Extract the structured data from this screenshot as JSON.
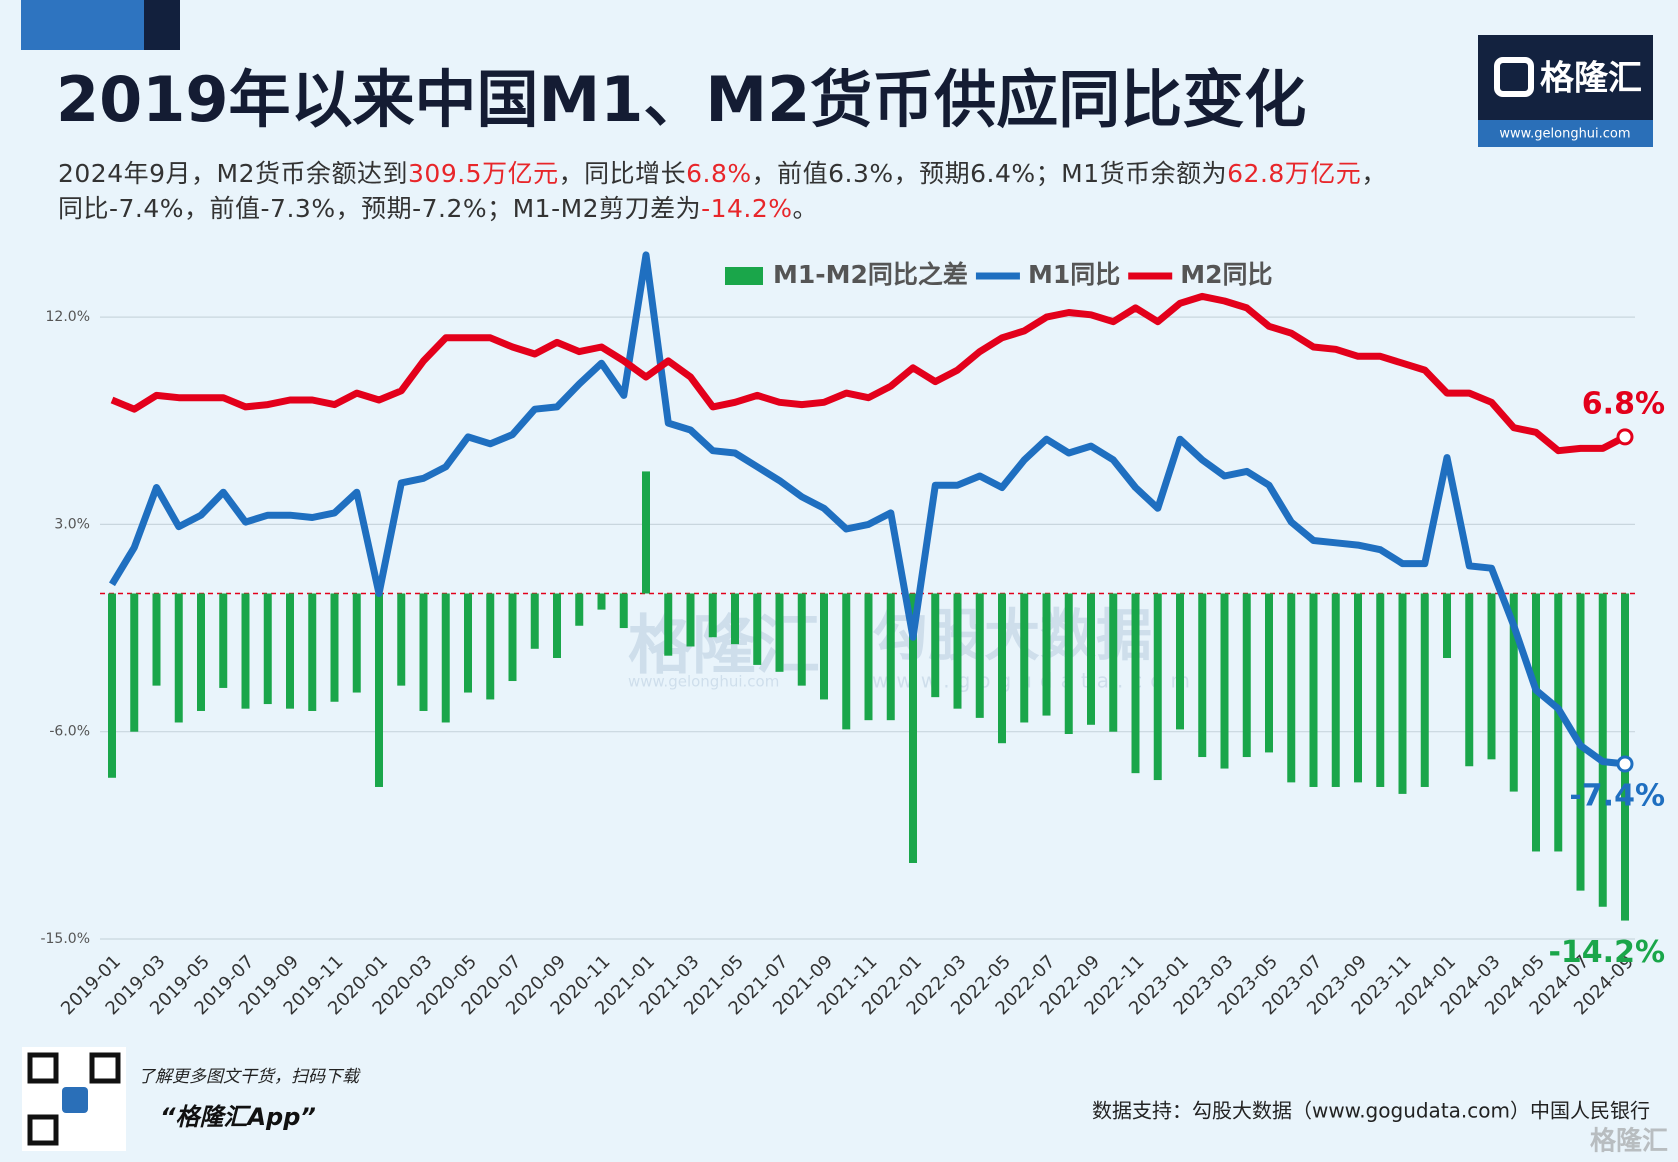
{
  "chart_data": {
    "type": "combo",
    "title": "2019年以来中国M1、M2货币供应同比变化",
    "subtitle": [
      [
        {
          "text": "2024年9月，M2货币余额达到"
        },
        {
          "text": "309.5万亿元",
          "color": "#e8262a"
        },
        {
          "text": "，同比增长"
        },
        {
          "text": "6.8%",
          "color": "#e8262a"
        },
        {
          "text": "，前值6.3%，预期6.4%；M1货币余额为"
        },
        {
          "text": "62.8万亿元",
          "color": "#e8262a"
        },
        {
          "text": "，"
        }
      ],
      [
        {
          "text": "同比-7.4%，前值-7.3%，预期-7.2%；M1-M2剪刀差为"
        },
        {
          "text": "-14.2%",
          "color": "#e8262a"
        },
        {
          "text": "。"
        }
      ]
    ],
    "categories": [
      "2019-01",
      null,
      "2019-03",
      null,
      "2019-05",
      null,
      "2019-07",
      null,
      "2019-09",
      null,
      "2019-11",
      null,
      "2020-01",
      null,
      "2020-03",
      null,
      "2020-05",
      null,
      "2020-07",
      null,
      "2020-09",
      null,
      "2020-11",
      null,
      "2021-01",
      null,
      "2021-03",
      null,
      "2021-05",
      null,
      "2021-07",
      null,
      "2021-09",
      null,
      "2021-11",
      null,
      "2022-01",
      null,
      "2022-03",
      null,
      "2022-05",
      null,
      "2022-07",
      null,
      "2022-09",
      null,
      "2022-11",
      null,
      "2023-01",
      null,
      "2023-03",
      null,
      "2023-05",
      null,
      "2023-07",
      null,
      "2023-09",
      null,
      "2023-11",
      null,
      "2024-01",
      null,
      "2024-03",
      null,
      "2024-05",
      null,
      "2024-07",
      null,
      "2024-09"
    ],
    "series": [
      {
        "name": "M1-M2同比之差",
        "type": "bar",
        "color": "#1aa64a",
        "values": [
          -8.0,
          -6.0,
          -4.0,
          -5.6,
          -5.1,
          -4.1,
          -5.0,
          -4.8,
          -5.0,
          -5.1,
          -4.7,
          -4.3,
          -8.4,
          -4.0,
          -5.1,
          -5.6,
          -4.3,
          -4.6,
          -3.8,
          -2.4,
          -2.8,
          -1.4,
          -0.7,
          -1.5,
          5.3,
          -2.7,
          -2.3,
          -1.9,
          -2.2,
          -3.1,
          -3.4,
          -4.0,
          -4.6,
          -5.9,
          -5.5,
          -5.5,
          -11.7,
          -4.5,
          -5.0,
          -5.4,
          -6.5,
          -5.6,
          -5.3,
          -6.1,
          -5.7,
          -6.0,
          -7.8,
          -8.1,
          -5.9,
          -7.1,
          -7.6,
          -7.1,
          -6.9,
          -8.2,
          -8.4,
          -8.4,
          -8.2,
          -8.4,
          -8.7,
          -8.4,
          -2.8,
          -7.5,
          -7.2,
          -8.6,
          -11.2,
          -11.2,
          -12.9,
          -13.6,
          -14.2
        ],
        "value_labels": [
          null,
          null,
          null,
          null,
          null,
          null,
          null,
          null,
          null,
          null,
          null,
          null,
          null,
          null,
          null,
          null,
          null,
          null,
          null,
          null,
          null,
          null,
          null,
          null,
          null,
          null,
          null,
          null,
          null,
          null,
          null,
          null,
          null,
          null,
          null,
          null,
          null,
          null,
          null,
          null,
          null,
          null,
          null,
          null,
          null,
          null,
          null,
          null,
          null,
          null,
          null,
          null,
          null,
          null,
          null,
          null,
          null,
          null,
          null,
          null,
          null,
          null,
          null,
          null,
          null,
          null,
          null,
          null,
          "-14.2%"
        ]
      },
      {
        "name": "M1同比",
        "type": "line",
        "color": "#1f6fc0",
        "values": [
          0.4,
          2.0,
          4.6,
          2.9,
          3.4,
          4.4,
          3.1,
          3.4,
          3.4,
          3.3,
          3.5,
          4.4,
          0.0,
          4.8,
          5.0,
          5.5,
          6.8,
          6.5,
          6.9,
          8.0,
          8.1,
          9.1,
          10.0,
          8.6,
          14.7,
          7.4,
          7.1,
          6.2,
          6.1,
          5.5,
          4.9,
          4.2,
          3.7,
          2.8,
          3.0,
          3.5,
          -1.9,
          4.7,
          4.7,
          5.1,
          4.6,
          5.8,
          6.7,
          6.1,
          6.4,
          5.8,
          4.6,
          3.7,
          6.7,
          5.8,
          5.1,
          5.3,
          4.7,
          3.1,
          2.3,
          2.2,
          2.1,
          1.9,
          1.3,
          1.3,
          5.9,
          1.2,
          1.1,
          -1.4,
          -4.2,
          -5.0,
          -6.6,
          -7.3,
          -7.4
        ],
        "value_labels": [
          null,
          null,
          null,
          null,
          null,
          null,
          null,
          null,
          null,
          null,
          null,
          null,
          null,
          null,
          null,
          null,
          null,
          null,
          null,
          null,
          null,
          null,
          null,
          null,
          null,
          null,
          null,
          null,
          null,
          null,
          null,
          null,
          null,
          null,
          null,
          null,
          null,
          null,
          null,
          null,
          null,
          null,
          null,
          null,
          null,
          null,
          null,
          null,
          null,
          null,
          null,
          null,
          null,
          null,
          null,
          null,
          null,
          null,
          null,
          null,
          null,
          null,
          null,
          null,
          null,
          null,
          null,
          null,
          "-7.4%"
        ]
      },
      {
        "name": "M2同比",
        "type": "line",
        "color": "#e3001b",
        "values": [
          8.4,
          8.0,
          8.6,
          8.5,
          8.5,
          8.5,
          8.1,
          8.2,
          8.4,
          8.4,
          8.2,
          8.7,
          8.4,
          8.8,
          10.1,
          11.1,
          11.1,
          11.1,
          10.7,
          10.4,
          10.9,
          10.5,
          10.7,
          10.1,
          9.4,
          10.1,
          9.4,
          8.1,
          8.3,
          8.6,
          8.3,
          8.2,
          8.3,
          8.7,
          8.5,
          9.0,
          9.8,
          9.2,
          9.7,
          10.5,
          11.1,
          11.4,
          12.0,
          12.2,
          12.1,
          11.8,
          12.4,
          11.8,
          12.6,
          12.9,
          12.7,
          12.4,
          11.6,
          11.3,
          10.7,
          10.6,
          10.3,
          10.3,
          10.0,
          9.7,
          8.7,
          8.7,
          8.3,
          7.2,
          7.0,
          6.2,
          6.3,
          6.3,
          6.8
        ],
        "value_labels": [
          null,
          null,
          null,
          null,
          null,
          null,
          null,
          null,
          null,
          null,
          null,
          null,
          null,
          null,
          null,
          null,
          null,
          null,
          null,
          null,
          null,
          null,
          null,
          null,
          null,
          null,
          null,
          null,
          null,
          null,
          null,
          null,
          null,
          null,
          null,
          null,
          null,
          null,
          null,
          null,
          null,
          null,
          null,
          null,
          null,
          null,
          null,
          null,
          null,
          null,
          null,
          null,
          null,
          null,
          null,
          null,
          null,
          null,
          null,
          null,
          null,
          null,
          null,
          null,
          null,
          null,
          null,
          null,
          "6.8%"
        ]
      }
    ],
    "ylim": [
      -15,
      15
    ],
    "yticks": [
      {
        "value": 12,
        "label": "12.0%"
      },
      {
        "value": 3,
        "label": "3.0%"
      },
      {
        "value": -6,
        "label": "-6.0%"
      },
      {
        "value": -15,
        "label": "-15.0%"
      }
    ],
    "grid": true,
    "legend": "top"
  },
  "logo": {
    "name": "格隆汇",
    "url": "www.gelonghui.com"
  },
  "watermarks": [
    "格隆汇",
    "www.gelonghui.com",
    "勾股大数据",
    "www.gogudata.com"
  ],
  "footer": {
    "qr_caption": "了解更多图文干货，扫码下载",
    "app": "“格隆汇App”",
    "source": "数据支持：勾股大数据（www.gogudata.com）中国人民银行",
    "brand": "格隆汇"
  }
}
